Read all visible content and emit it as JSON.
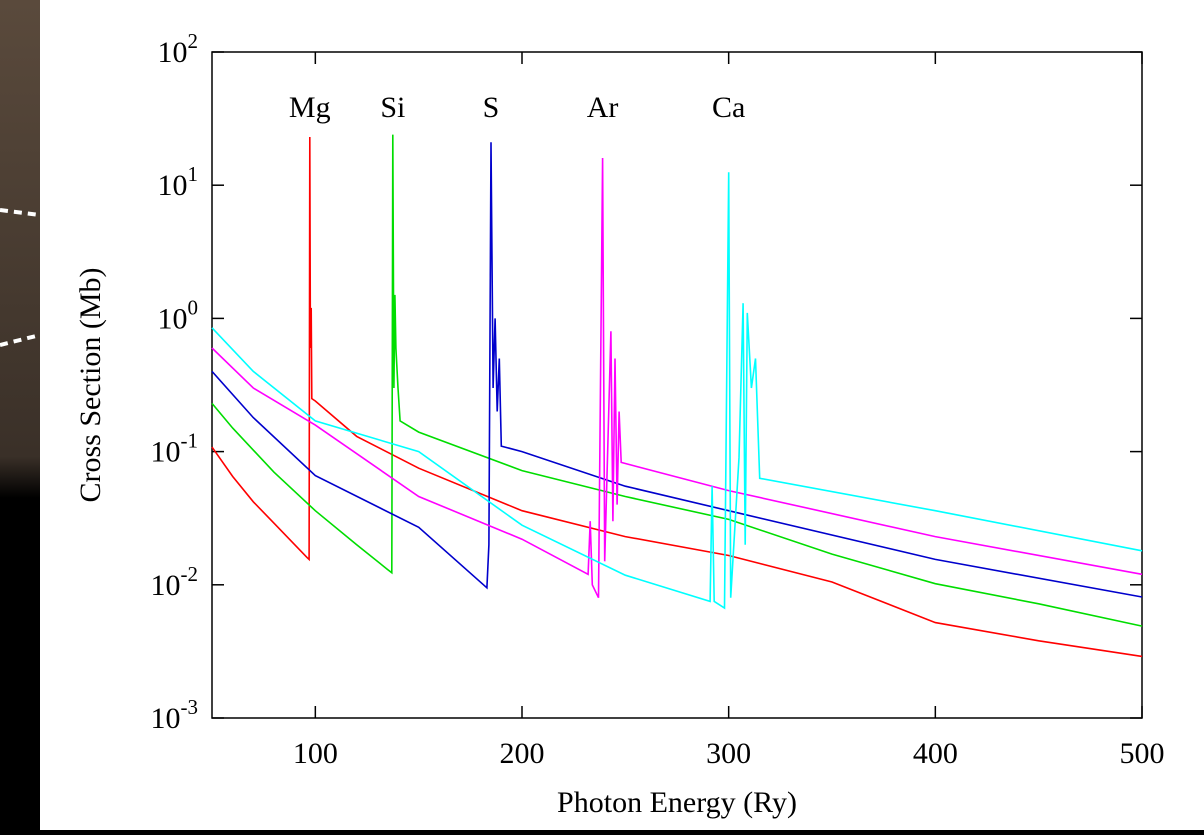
{
  "chart_data": {
    "type": "line",
    "xlabel": "Photon Energy (Ry)",
    "ylabel": "Cross Section (Mb)",
    "xlim": [
      50,
      500
    ],
    "ylim": [
      0.001,
      100
    ],
    "ylog": true,
    "xticks": [
      100,
      200,
      300,
      400,
      500
    ],
    "yticks": [
      {
        "value": 0.001,
        "label": "10^-3"
      },
      {
        "value": 0.01,
        "label": "10^-2"
      },
      {
        "value": 0.1,
        "label": "10^-1"
      },
      {
        "value": 1,
        "label": "10^0"
      },
      {
        "value": 10,
        "label": "10^1"
      },
      {
        "value": 100,
        "label": "10^2"
      }
    ],
    "series": [
      {
        "name": "Mg",
        "color": "#ff0000",
        "x": [
          50,
          60,
          70,
          80,
          90,
          96,
          97,
          97.3,
          97.6,
          98,
          98.3,
          100,
          120,
          150,
          200,
          250,
          300,
          350,
          400,
          450,
          500
        ],
        "values": [
          0.108,
          0.065,
          0.042,
          0.029,
          0.02,
          0.016,
          0.0155,
          23,
          0.6,
          1.2,
          0.25,
          0.24,
          0.13,
          0.075,
          0.036,
          0.023,
          0.0166,
          0.0105,
          0.0052,
          0.0038,
          0.0029
        ]
      },
      {
        "name": "Si",
        "color": "#00dd00",
        "x": [
          50,
          60,
          80,
          100,
          120,
          135,
          137,
          137.5,
          138,
          138.5,
          139,
          140,
          141,
          150,
          200,
          250,
          300,
          350,
          400,
          450,
          500
        ],
        "values": [
          0.23,
          0.15,
          0.07,
          0.036,
          0.02,
          0.013,
          0.0123,
          24,
          0.3,
          1.5,
          0.6,
          0.3,
          0.17,
          0.14,
          0.072,
          0.046,
          0.031,
          0.017,
          0.0102,
          0.0072,
          0.0049
        ]
      },
      {
        "name": "S",
        "color": "#0000cc",
        "x": [
          50,
          70,
          100,
          150,
          183,
          184,
          185,
          186,
          187,
          188,
          189,
          190,
          200,
          250,
          300,
          400,
          500
        ],
        "values": [
          0.4,
          0.18,
          0.066,
          0.027,
          0.0095,
          0.02,
          21,
          0.3,
          1.0,
          0.2,
          0.5,
          0.11,
          0.1,
          0.055,
          0.036,
          0.0155,
          0.0081
        ]
      },
      {
        "name": "Ar",
        "color": "#ff00ff",
        "x": [
          50,
          70,
          100,
          150,
          200,
          232,
          233,
          234,
          237,
          239,
          240,
          243,
          244,
          245,
          246,
          247,
          248,
          300,
          400,
          500
        ],
        "values": [
          0.6,
          0.3,
          0.158,
          0.046,
          0.022,
          0.012,
          0.03,
          0.01,
          0.008,
          16,
          0.015,
          0.8,
          0.03,
          0.5,
          0.04,
          0.2,
          0.083,
          0.051,
          0.023,
          0.012
        ]
      },
      {
        "name": "Ca",
        "color": "#00ffff",
        "x": [
          50,
          70,
          100,
          150,
          200,
          250,
          291,
          292,
          293,
          298,
          300,
          301,
          305,
          307,
          308,
          309,
          311,
          313,
          315,
          400,
          500
        ],
        "values": [
          0.85,
          0.4,
          0.17,
          0.1,
          0.028,
          0.0118,
          0.0075,
          0.055,
          0.0075,
          0.0067,
          12.5,
          0.008,
          0.09,
          1.3,
          0.02,
          1.1,
          0.3,
          0.5,
          0.063,
          0.036,
          0.018
        ]
      }
    ]
  }
}
